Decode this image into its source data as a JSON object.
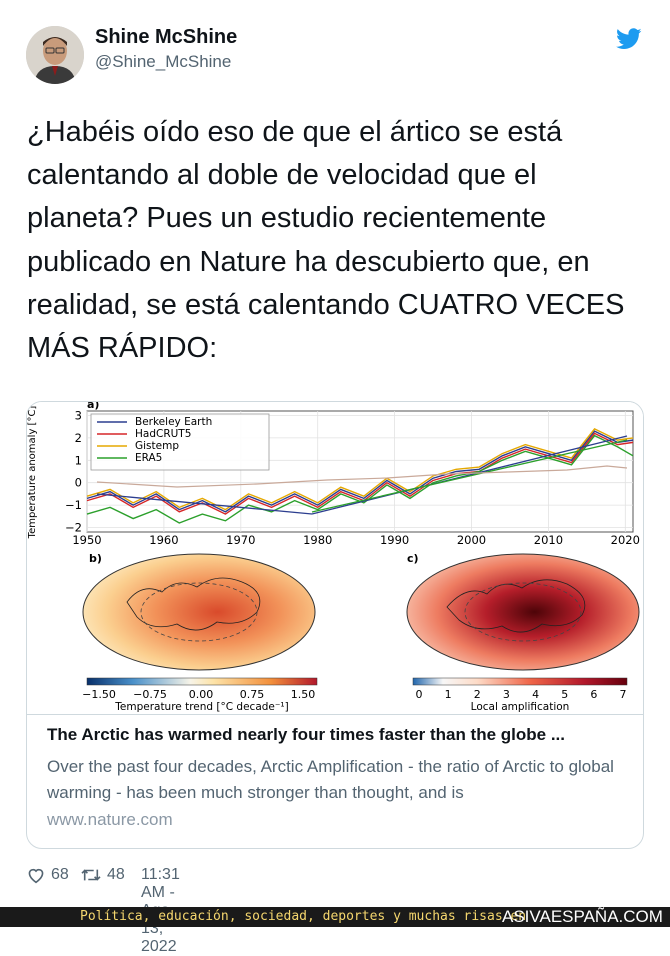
{
  "tweet": {
    "display_name": "Shine McShine",
    "handle": "@Shine_McShine",
    "text": "¿Habéis oído eso de que el ártico se está calentando al doble de velocidad que el planeta? Pues un estudio recientemente publicado en Nature ha descubierto que, en realidad, se está calentando CUATRO VECES MÁS RÁPIDO:",
    "likes": "68",
    "retweets": "48",
    "timestamp": "11:31 AM - Ago 13, 2022"
  },
  "icons": {
    "twitter": "twitter-bird-icon",
    "like": "heart-icon",
    "retweet": "retweet-icon"
  },
  "colors": {
    "twitter_blue": "#1d9bf0",
    "footer_bg": "#1a1a1a",
    "footer_text": "#f5d76e"
  },
  "card": {
    "title": "The Arctic has warmed nearly four times faster than the globe ...",
    "description": "Over the past four decades, Arctic Amplification - the ratio of Arctic to global warming - has been much stronger than thought, and is",
    "domain": "www.nature.com"
  },
  "footer": {
    "text": "Política, educación, sociedad, deportes y muchas risas en",
    "brand": "ASIVAESPAÑA.COM"
  },
  "chart_data": [
    {
      "type": "line",
      "panel_label": "a)",
      "ylabel": "Temperature anomaly [°C]",
      "xlim": [
        1950,
        2021
      ],
      "ylim": [
        -2.2,
        3.2
      ],
      "yticks": [
        3,
        2,
        1,
        0,
        -1,
        -2
      ],
      "xticks": [
        1950,
        1960,
        1970,
        1980,
        1990,
        2000,
        2010,
        2020
      ],
      "grid": true,
      "legend": "top-left",
      "x": [
        1950,
        1953,
        1956,
        1959,
        1962,
        1965,
        1968,
        1971,
        1974,
        1977,
        1980,
        1983,
        1986,
        1989,
        1992,
        1995,
        1998,
        2001,
        2004,
        2007,
        2010,
        2013,
        2016,
        2019,
        2021
      ],
      "series": [
        {
          "name": "Berkeley Earth",
          "color": "#2c3e8f",
          "values": [
            -0.7,
            -0.4,
            -1.0,
            -0.5,
            -1.2,
            -0.8,
            -1.3,
            -0.6,
            -1.0,
            -0.5,
            -1.0,
            -0.3,
            -0.7,
            0.1,
            -0.5,
            0.2,
            0.5,
            0.6,
            1.2,
            1.6,
            1.3,
            1.0,
            2.3,
            1.8,
            1.9
          ]
        },
        {
          "name": "HadCRUT5",
          "color": "#d62728",
          "values": [
            -0.8,
            -0.5,
            -1.1,
            -0.6,
            -1.3,
            -0.9,
            -1.4,
            -0.7,
            -1.1,
            -0.6,
            -1.1,
            -0.4,
            -0.8,
            0.0,
            -0.6,
            0.1,
            0.4,
            0.5,
            1.1,
            1.5,
            1.2,
            0.9,
            2.2,
            1.7,
            1.8
          ]
        },
        {
          "name": "Gistemp",
          "color": "#e5a800",
          "values": [
            -0.6,
            -0.3,
            -0.9,
            -0.4,
            -1.1,
            -0.7,
            -1.2,
            -0.5,
            -0.9,
            -0.4,
            -0.9,
            -0.2,
            -0.6,
            0.2,
            -0.4,
            0.3,
            0.6,
            0.7,
            1.3,
            1.7,
            1.4,
            1.1,
            2.4,
            1.9,
            2.0
          ]
        },
        {
          "name": "ERA5",
          "color": "#2ca02c",
          "values": [
            -1.4,
            -1.1,
            -1.6,
            -1.2,
            -1.8,
            -1.4,
            -1.7,
            -1.0,
            -1.3,
            -0.8,
            -1.2,
            -0.5,
            -0.9,
            -0.1,
            -0.7,
            0.0,
            0.3,
            0.5,
            1.0,
            1.4,
            1.1,
            0.8,
            2.1,
            1.6,
            1.2
          ]
        }
      ]
    },
    {
      "type": "heatmap",
      "panel_label": "b)",
      "colorbar_ticks": [
        "−1.50",
        "−0.75",
        "0.00",
        "0.75",
        "1.50"
      ],
      "colorbar_label": "Temperature trend [°C decade⁻¹]"
    },
    {
      "type": "heatmap",
      "panel_label": "c)",
      "colorbar_ticks": [
        "0",
        "1",
        "2",
        "3",
        "4",
        "5",
        "6",
        "7"
      ],
      "colorbar_label": "Local amplification"
    }
  ]
}
